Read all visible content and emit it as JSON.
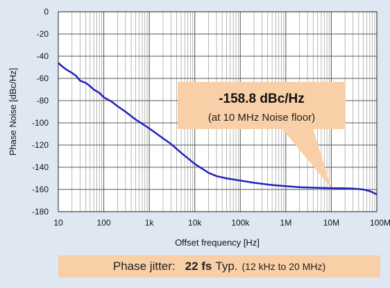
{
  "chart_data": {
    "type": "line",
    "xlabel": "Offset frequency [Hz]",
    "ylabel": "Phase Noise [dBc/Hz]",
    "xscale": "log",
    "xlim": [
      10,
      100000000
    ],
    "ylim": [
      -180,
      0
    ],
    "x_ticks": [
      10,
      100,
      1000,
      10000,
      100000,
      1000000,
      10000000,
      100000000
    ],
    "x_tick_labels": [
      "10",
      "100",
      "1k",
      "10k",
      "100k",
      "1M",
      "10M",
      "100M"
    ],
    "y_ticks": [
      0,
      -20,
      -40,
      -60,
      -80,
      -100,
      -120,
      -140,
      -160,
      -180
    ],
    "y_tick_labels": [
      "0",
      "-20",
      "-40",
      "-60",
      "-80",
      "-100",
      "-120",
      "-140",
      "-160",
      "-180"
    ],
    "grid": true,
    "series_color": "#1f22b8",
    "series": [
      {
        "x": [
          10,
          12,
          15,
          20,
          25,
          30,
          40,
          50,
          60,
          80,
          100,
          150,
          200,
          300,
          500,
          1000,
          2000,
          3000,
          5000,
          10000,
          20000,
          30000,
          50000,
          100000,
          200000,
          500000,
          1000000,
          2000000,
          5000000,
          10000000,
          20000000,
          30000000,
          50000000,
          70000000,
          90000000,
          100000000
        ],
        "y": [
          -46,
          -49,
          -52,
          -55,
          -58,
          -62,
          -64,
          -67,
          -70,
          -73,
          -77,
          -81,
          -85,
          -90,
          -97,
          -105,
          -114,
          -119,
          -127,
          -137,
          -145,
          -148,
          -150,
          -152,
          -154,
          -156,
          -157,
          -158,
          -158.5,
          -158.8,
          -159,
          -159.2,
          -160,
          -161.5,
          -163.5,
          -164.5
        ]
      }
    ],
    "annotation": {
      "value": "-158.8 dBc/Hz",
      "note": "(at 10 MHz Noise floor)",
      "x": 10000000,
      "y": -158.8,
      "color": "#f9cfa7"
    }
  },
  "jitter": {
    "label": "Phase jitter:",
    "value": "22 fs",
    "typ": "Typ.",
    "range": "(12 kHz to 20 MHz)",
    "color": "#f9cfa7"
  }
}
